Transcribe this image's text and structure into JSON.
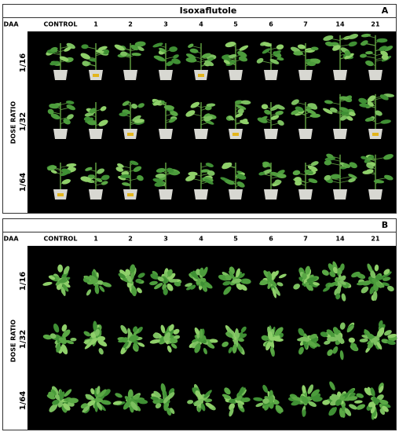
{
  "title": "Isoxaflutole",
  "panels": [
    {
      "label": "A",
      "header": "DAA",
      "columns": [
        "CONTROL",
        "1",
        "2",
        "3",
        "4",
        "5",
        "6",
        "7",
        "14",
        "21"
      ],
      "row_axis_label": "DOSE RATIO",
      "rows": [
        "1/16",
        "1/32",
        "1/64"
      ]
    },
    {
      "label": "B",
      "header": "DAA",
      "columns": [
        "CONTROL",
        "1",
        "2",
        "3",
        "4",
        "5",
        "6",
        "7",
        "14",
        "21"
      ],
      "row_axis_label": "DOSE RATIO",
      "rows": [
        "1/16",
        "1/32",
        "1/64"
      ]
    }
  ]
}
